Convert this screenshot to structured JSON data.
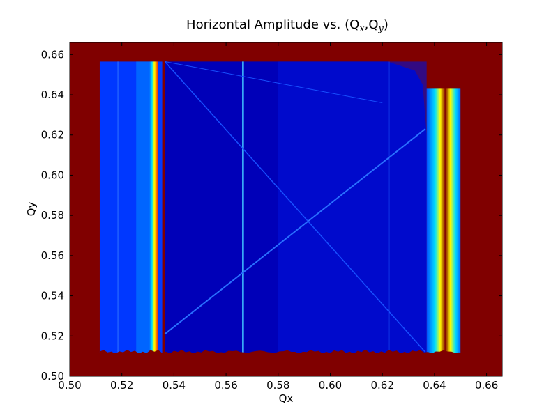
{
  "chart_data": {
    "type": "heatmap",
    "title": "Horizontal Amplitude vs. (Q",
    "title_sub_x": "x",
    "title_sub_y": "y",
    "title_sep": ",Q",
    "title_close": ")",
    "xlabel": "Qx",
    "ylabel": "Qy",
    "xlim": [
      0.5,
      0.666
    ],
    "ylim": [
      0.5,
      0.666
    ],
    "xticks": [
      "0.50",
      "0.52",
      "0.54",
      "0.56",
      "0.58",
      "0.60",
      "0.62",
      "0.64",
      "0.66"
    ],
    "yticks": [
      "0.50",
      "0.52",
      "0.54",
      "0.56",
      "0.58",
      "0.60",
      "0.62",
      "0.64",
      "0.66"
    ],
    "colormap": "jet",
    "background_color": "#800000",
    "regions": {
      "left_band_x": [
        0.5115,
        0.5355
      ],
      "left_hot_stripe_x": [
        0.5305,
        0.534
      ],
      "left_gap_x": [
        0.5335,
        0.5365
      ],
      "main_x": [
        0.5365,
        0.637
      ],
      "right_band_x": [
        0.637,
        0.65
      ],
      "y_range": [
        0.5115,
        0.6565
      ],
      "top_right_corner_x": 0.622
    },
    "lines": {
      "vertical_x": [
        0.5665,
        0.6225,
        0.5185
      ],
      "diagonal_up": [
        [
          0.5365,
          0.521
        ],
        [
          0.6365,
          0.623
        ]
      ],
      "diagonal_down": [
        [
          0.5365,
          0.6565
        ],
        [
          0.6365,
          0.512
        ]
      ]
    },
    "grid": false,
    "legend": "none"
  }
}
